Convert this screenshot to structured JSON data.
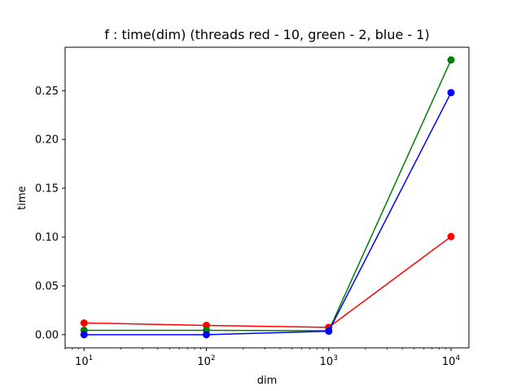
{
  "chart_data": {
    "type": "line",
    "title": "f : time(dim) (threads red - 10, green - 2, blue - 1)",
    "xlabel": "dim",
    "ylabel": "time",
    "xscale": "log",
    "xlim": [
      7,
      14000
    ],
    "ylim": [
      -0.0135,
      0.2945
    ],
    "x": [
      10,
      100,
      1000,
      10000
    ],
    "x_ticks": [
      {
        "value": 10,
        "base": "10",
        "exp": "1"
      },
      {
        "value": 100,
        "base": "10",
        "exp": "2"
      },
      {
        "value": 1000,
        "base": "10",
        "exp": "3"
      },
      {
        "value": 10000,
        "base": "10",
        "exp": "4"
      }
    ],
    "y_ticks": [
      {
        "value": 0.0,
        "label": "0.00"
      },
      {
        "value": 0.05,
        "label": "0.05"
      },
      {
        "value": 0.1,
        "label": "0.10"
      },
      {
        "value": 0.15,
        "label": "0.15"
      },
      {
        "value": 0.2,
        "label": "0.20"
      },
      {
        "value": 0.25,
        "label": "0.25"
      }
    ],
    "grid": false,
    "legend": "none",
    "series": [
      {
        "color": "#ff0000",
        "values": [
          0.012,
          0.0095,
          0.0075,
          0.1005
        ]
      },
      {
        "color": "#008000",
        "values": [
          0.0045,
          0.0045,
          0.004,
          0.2815
        ]
      },
      {
        "color": "#0000ff",
        "values": [
          0.0,
          0.0,
          0.0035,
          0.248
        ]
      }
    ]
  }
}
